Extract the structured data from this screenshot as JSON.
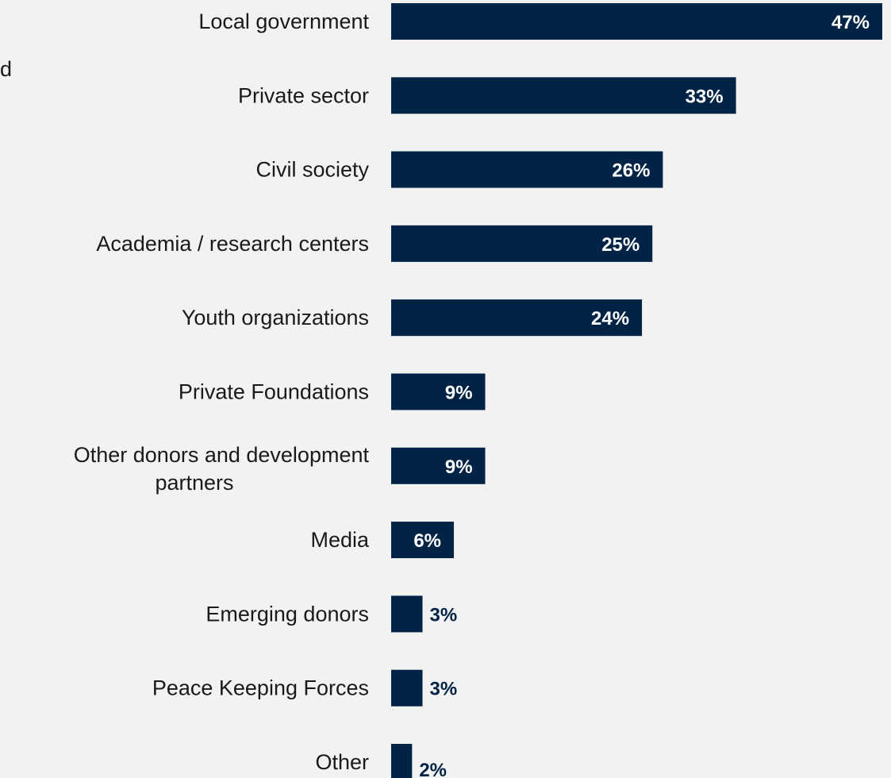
{
  "stray_text": "d",
  "colors": {
    "bar": "#012345",
    "label_inside": "#ffffff",
    "label_outside": "#012345",
    "category_text": "#1a1a1a",
    "background": "#f2f2f2"
  },
  "chart_data": {
    "type": "bar",
    "orientation": "horizontal",
    "categories": [
      "Local government",
      "Private sector",
      "Civil society",
      "Academia / research centers",
      "Youth organizations",
      "Private Foundations",
      "Other donors and development partners",
      "Media",
      "Emerging donors",
      "Peace Keeping Forces",
      "Other"
    ],
    "values": [
      47,
      33,
      26,
      25,
      24,
      9,
      9,
      6,
      3,
      3,
      2
    ],
    "value_labels": [
      "47%",
      "33%",
      "26%",
      "25%",
      "24%",
      "9%",
      "9%",
      "6%",
      "3%",
      "3%",
      "2%"
    ],
    "xlim": [
      0,
      47
    ],
    "grid": false,
    "legend": false
  }
}
